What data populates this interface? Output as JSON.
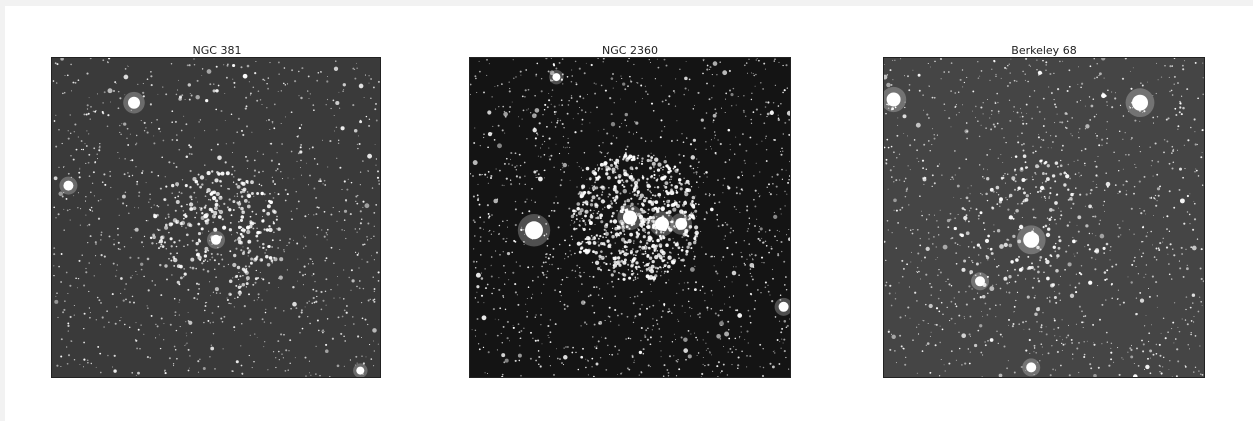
{
  "figure": {
    "panels": [
      {
        "title": "NGC 381",
        "background": "#3a3a3a",
        "density": "medium"
      },
      {
        "title": "NGC 2360",
        "background": "#141414",
        "density": "rich"
      },
      {
        "title": "Berkeley 68",
        "background": "#454545",
        "density": "medium"
      }
    ]
  }
}
